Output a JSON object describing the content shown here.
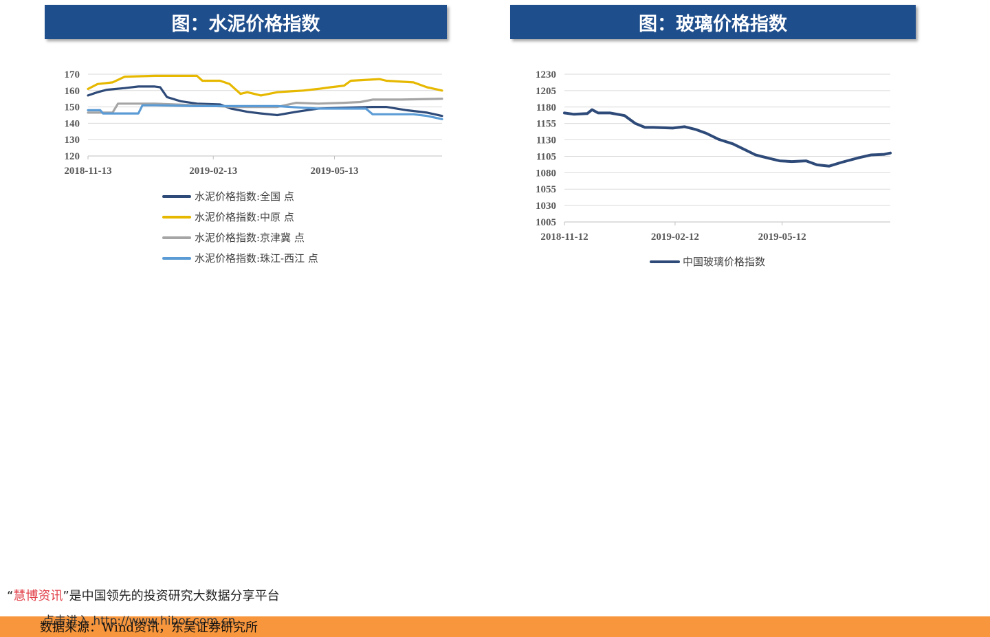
{
  "chart_data": [
    {
      "type": "line",
      "title": "图：水泥价格指数",
      "x_ticks": [
        "2018-11-13",
        "2019-02-13",
        "2019-05-13"
      ],
      "x_range": [
        "2018-11-13",
        "2019-07-31"
      ],
      "ylim": [
        120,
        170
      ],
      "y_ticks": [
        120,
        130,
        140,
        150,
        160,
        170
      ],
      "grid": true,
      "legend_position": "bottom",
      "series": [
        {
          "name": "水泥价格指数:全国  点",
          "color": "#2e4a78",
          "x": [
            "2018-11-13",
            "2018-11-20",
            "2018-11-27",
            "2018-12-10",
            "2018-12-20",
            "2019-01-01",
            "2019-01-05",
            "2019-01-10",
            "2019-01-20",
            "2019-02-01",
            "2019-02-18",
            "2019-02-26",
            "2019-03-10",
            "2019-03-20",
            "2019-04-01",
            "2019-04-15",
            "2019-05-01",
            "2019-05-20",
            "2019-06-10",
            "2019-06-20",
            "2019-07-05",
            "2019-07-20",
            "2019-07-31"
          ],
          "values": [
            157,
            159,
            160.5,
            161.5,
            162.5,
            162.5,
            162,
            156,
            153.5,
            152,
            151.5,
            149,
            147,
            146,
            145,
            147,
            149,
            149.5,
            150,
            150,
            148,
            146.5,
            144.5
          ]
        },
        {
          "name": "水泥价格指数:中原  点",
          "color": "#e6b800",
          "x": [
            "2018-11-13",
            "2018-11-20",
            "2018-12-01",
            "2018-12-10",
            "2019-01-01",
            "2019-02-01",
            "2019-02-05",
            "2019-02-18",
            "2019-02-25",
            "2019-03-05",
            "2019-03-10",
            "2019-03-20",
            "2019-04-01",
            "2019-04-10",
            "2019-04-20",
            "2019-05-01",
            "2019-05-10",
            "2019-05-20",
            "2019-05-25",
            "2019-06-15",
            "2019-06-20",
            "2019-07-10",
            "2019-07-20",
            "2019-07-31"
          ],
          "values": [
            161,
            164,
            165,
            168.5,
            169,
            169,
            166,
            166,
            164,
            158,
            159,
            157,
            159,
            159.5,
            160,
            161,
            162,
            163,
            166,
            167,
            166,
            165,
            162,
            160
          ]
        },
        {
          "name": "水泥价格指数:京津冀  点",
          "color": "#a5a5a5",
          "x": [
            "2018-11-13",
            "2018-12-01",
            "2018-12-05",
            "2019-01-01",
            "2019-02-01",
            "2019-03-01",
            "2019-04-01",
            "2019-04-15",
            "2019-05-01",
            "2019-05-20",
            "2019-06-01",
            "2019-06-10",
            "2019-07-01",
            "2019-07-31"
          ],
          "values": [
            146.5,
            146.5,
            152,
            152,
            151,
            150,
            150,
            152.5,
            152,
            152.5,
            153,
            154.5,
            154.5,
            155
          ]
        },
        {
          "name": "水泥价格指数:珠江-西江  点",
          "color": "#5b9bd5",
          "x": [
            "2018-11-13",
            "2018-11-22",
            "2018-11-24",
            "2018-12-20",
            "2018-12-23",
            "2019-01-01",
            "2019-02-01",
            "2019-03-01",
            "2019-04-01",
            "2019-04-20",
            "2019-05-01",
            "2019-06-01",
            "2019-06-05",
            "2019-06-10",
            "2019-07-10",
            "2019-07-20",
            "2019-07-31"
          ],
          "values": [
            148,
            148,
            146,
            146,
            151,
            151,
            150.5,
            150.5,
            150.5,
            149.5,
            149,
            149,
            149,
            145.5,
            145.5,
            144.5,
            142.5
          ]
        }
      ]
    },
    {
      "type": "line",
      "title": "图：玻璃价格指数",
      "x_ticks": [
        "2018-11-12",
        "2019-02-12",
        "2019-05-12"
      ],
      "x_range": [
        "2018-11-12",
        "2019-08-10"
      ],
      "ylim": [
        1005,
        1230
      ],
      "y_ticks": [
        1005,
        1030,
        1055,
        1080,
        1105,
        1130,
        1155,
        1180,
        1205,
        1230
      ],
      "grid": true,
      "legend_position": "bottom",
      "series": [
        {
          "name": "中国玻璃价格指数",
          "color": "#2e4a78",
          "x": [
            "2018-11-12",
            "2018-11-20",
            "2018-12-01",
            "2018-12-05",
            "2018-12-10",
            "2018-12-14",
            "2018-12-20",
            "2019-01-01",
            "2019-01-10",
            "2019-01-18",
            "2019-01-25",
            "2019-02-10",
            "2019-02-20",
            "2019-03-01",
            "2019-03-10",
            "2019-03-20",
            "2019-04-01",
            "2019-04-10",
            "2019-04-20",
            "2019-05-01",
            "2019-05-10",
            "2019-05-20",
            "2019-06-01",
            "2019-06-10",
            "2019-06-20",
            "2019-07-01",
            "2019-07-15",
            "2019-07-25",
            "2019-08-05",
            "2019-08-10"
          ],
          "values": [
            1171,
            1169,
            1170,
            1176,
            1171,
            1171,
            1171,
            1167,
            1155,
            1149,
            1149,
            1148,
            1150,
            1146,
            1140,
            1131,
            1124,
            1116,
            1107,
            1102,
            1098,
            1097,
            1098,
            1092,
            1090,
            1096,
            1103,
            1107,
            1108,
            1110
          ]
        }
      ]
    }
  ],
  "footer": {
    "quote_open": "“",
    "brand": "慧博资讯",
    "quote_close": "”",
    "tagline": "是中国领先的投资研究大数据分享平台",
    "enter_text": "点击进入  http://www.hibor.com.cn",
    "source_text": "数据来源：Wind资讯，东吴证券研究所"
  }
}
